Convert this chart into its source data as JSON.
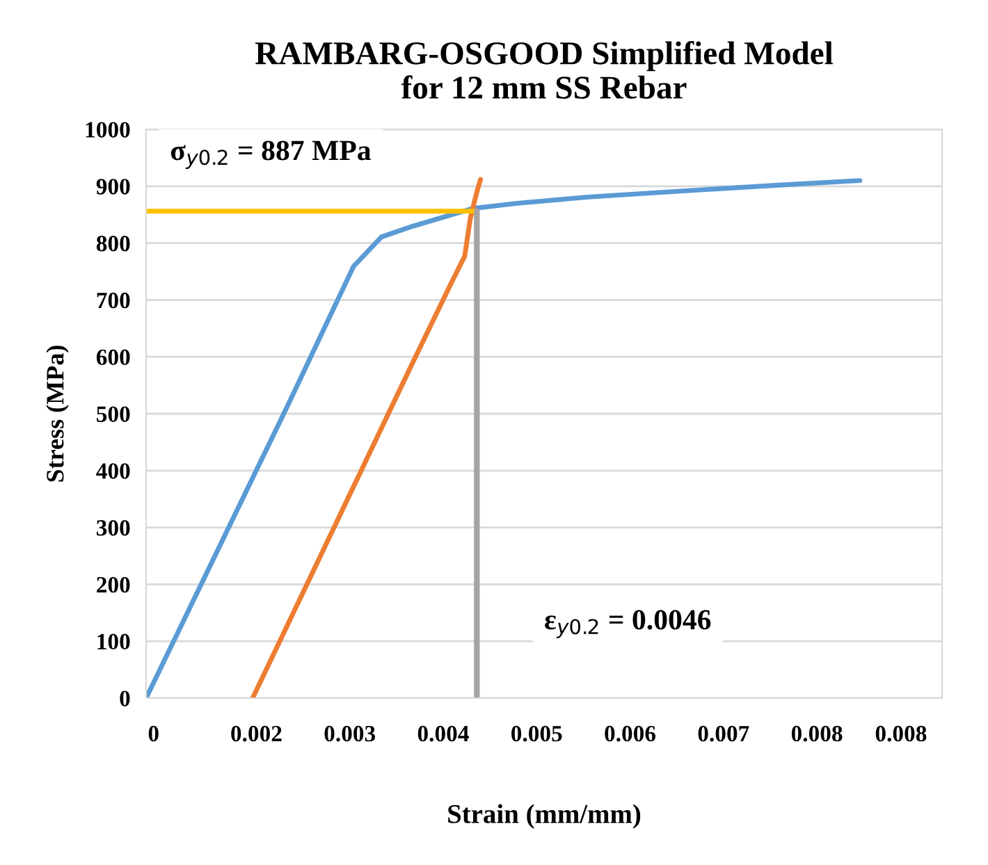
{
  "chart_data": {
    "type": "line",
    "title": "RAMBARG-OSGOOD Simplified Model\nfor 12 mm SS Rebar",
    "xlabel": "Strain (mm/mm)",
    "ylabel": "Stress (MPa)",
    "series": [
      {
        "color": "#5b9bd5",
        "x": [
          0.00032,
          0.00184,
          0.00254,
          0.00284,
          0.00318,
          0.00382,
          0.00429,
          0.00505,
          0.0061,
          0.00709,
          0.00796
        ],
        "values": [
          0,
          516,
          759,
          811,
          830,
          861,
          870,
          881,
          892,
          902,
          910
        ]
      },
      {
        "color": "#ed7d31",
        "x": [
          0.00146,
          0.00318,
          0.00359,
          0.00373,
          0.00379,
          0.00386,
          0.0039
        ],
        "values": [
          0,
          592,
          731,
          777,
          843,
          890,
          912
        ]
      },
      {
        "color": "#ffc000",
        "x": [
          0.00032,
          0.00386
        ],
        "values": [
          856,
          856
        ]
      },
      {
        "color": "#a5a5a5",
        "x": [
          0.00386,
          0.00386
        ],
        "values": [
          0,
          856
        ]
      }
    ],
    "xlim": [
      0.00032,
      0.00884
    ],
    "xticks": [
      {
        "value": 0.0004,
        "label": "0"
      },
      {
        "value": 0.0015,
        "label": "0.002"
      },
      {
        "value": 0.0025,
        "label": "0.003"
      },
      {
        "value": 0.0035,
        "label": "0.004"
      },
      {
        "value": 0.0045,
        "label": "0.005"
      },
      {
        "value": 0.0055,
        "label": "0.006"
      },
      {
        "value": 0.0065,
        "label": "0.007"
      },
      {
        "value": 0.0075,
        "label": "0.008"
      },
      {
        "value": 0.0084,
        "label": "0.008"
      }
    ],
    "ylim": [
      0,
      1000
    ],
    "yticks": [
      0,
      100,
      200,
      300,
      400,
      500,
      600,
      700,
      800,
      900,
      1000
    ],
    "grid": "y",
    "legend": false,
    "annotations": [
      "σ$_{y0.2}$ = 887 MPa",
      "ε$_{y0.2}$ = 0.0046"
    ]
  }
}
